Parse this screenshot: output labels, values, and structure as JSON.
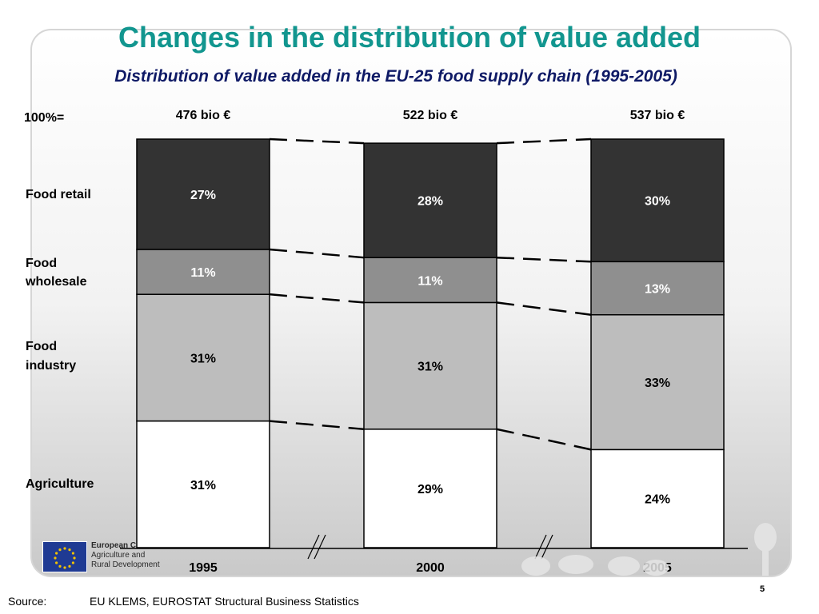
{
  "title": "Changes in the distribution of value added",
  "subtitle": "Distribution of value added in the EU-25 food supply chain (1995-2005)",
  "row_labels": {
    "total": "100%=",
    "food_retail": "Food retail",
    "food_wholesale_1": "Food",
    "food_wholesale_2": "wholesale",
    "food_industry_1": "Food",
    "food_industry_2": "industry",
    "agriculture": "Agriculture"
  },
  "source": {
    "label": "Source:",
    "text": "EU KLEMS, EUROSTAT Structural Business Statistics"
  },
  "page_number": "5",
  "logo": {
    "line1": "European C",
    "line2": "Agriculture and",
    "line3": "Rural Development"
  },
  "colors": {
    "food_retail": "#333333",
    "food_wholesale": "#8f8f8f",
    "food_industry": "#bdbdbd",
    "agriculture": "#ffffff",
    "title": "#12968f",
    "subtitle": "#0f1a66"
  },
  "chart_data": {
    "type": "bar",
    "stacked": true,
    "normalized_percent": true,
    "categories": [
      "1995",
      "2000",
      "2005"
    ],
    "totals": [
      "476 bio €",
      "522 bio €",
      "537 bio €"
    ],
    "series": [
      {
        "name": "Agriculture",
        "values": [
          31,
          29,
          24
        ],
        "labels": [
          "31%",
          "29%",
          "24%"
        ]
      },
      {
        "name": "Food industry",
        "values": [
          31,
          31,
          33
        ],
        "labels": [
          "31%",
          "31%",
          "33%"
        ]
      },
      {
        "name": "Food wholesale",
        "values": [
          11,
          11,
          13
        ],
        "labels": [
          "11%",
          "11%",
          "13%"
        ]
      },
      {
        "name": "Food retail",
        "values": [
          27,
          28,
          30
        ],
        "labels": [
          "27%",
          "28%",
          "30%"
        ]
      }
    ],
    "ylim": [
      0,
      100
    ],
    "grid": false,
    "legend": "left-labels",
    "connectors": "dashed"
  }
}
